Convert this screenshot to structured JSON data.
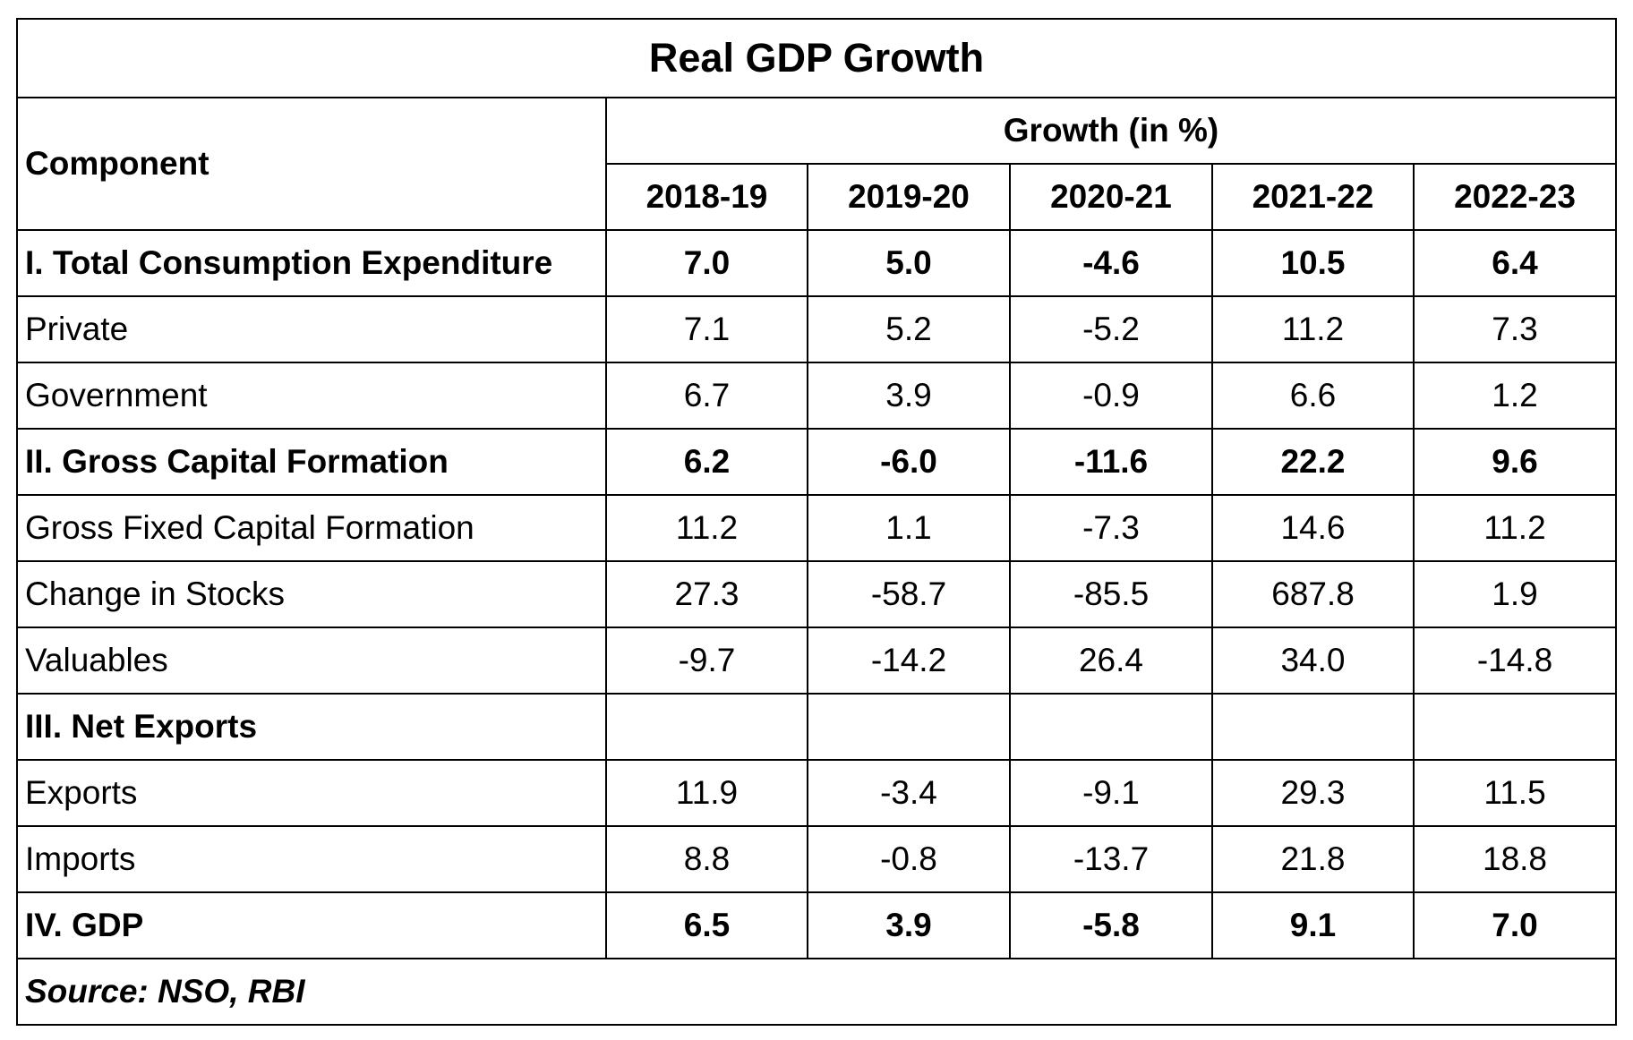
{
  "title": "Real GDP Growth",
  "header": {
    "component_label": "Component",
    "group_label": "Growth (in %)",
    "years": [
      "2018-19",
      "2019-20",
      "2020-21",
      "2021-22",
      "2022-23"
    ]
  },
  "rows": [
    {
      "label": "I. Total Consumption Expenditure",
      "values": [
        "7.0",
        "5.0",
        "-4.6",
        "10.5",
        "6.4"
      ],
      "bold": true
    },
    {
      "label": "Private",
      "values": [
        "7.1",
        "5.2",
        "-5.2",
        "11.2",
        "7.3"
      ],
      "bold": false
    },
    {
      "label": "Government",
      "values": [
        "6.7",
        "3.9",
        "-0.9",
        "6.6",
        "1.2"
      ],
      "bold": false
    },
    {
      "label": "II. Gross Capital Formation",
      "values": [
        "6.2",
        "-6.0",
        "-11.6",
        "22.2",
        "9.6"
      ],
      "bold": true
    },
    {
      "label": "Gross Fixed Capital Formation",
      "values": [
        "11.2",
        "1.1",
        "-7.3",
        "14.6",
        "11.2"
      ],
      "bold": false
    },
    {
      "label": "Change in Stocks",
      "values": [
        "27.3",
        "-58.7",
        "-85.5",
        "687.8",
        "1.9"
      ],
      "bold": false
    },
    {
      "label": "Valuables",
      "values": [
        "-9.7",
        "-14.2",
        "26.4",
        "34.0",
        "-14.8"
      ],
      "bold": false
    },
    {
      "label": "III. Net Exports",
      "values": [
        "",
        "",
        "",
        "",
        ""
      ],
      "bold": true
    },
    {
      "label": "Exports",
      "values": [
        "11.9",
        "-3.4",
        "-9.1",
        "29.3",
        "11.5"
      ],
      "bold": false
    },
    {
      "label": "Imports",
      "values": [
        "8.8",
        "-0.8",
        "-13.7",
        "21.8",
        "18.8"
      ],
      "bold": false
    },
    {
      "label": "IV. GDP",
      "values": [
        "6.5",
        "3.9",
        "-5.8",
        "9.1",
        "7.0"
      ],
      "bold": true
    }
  ],
  "source": "Source: NSO, RBI"
}
